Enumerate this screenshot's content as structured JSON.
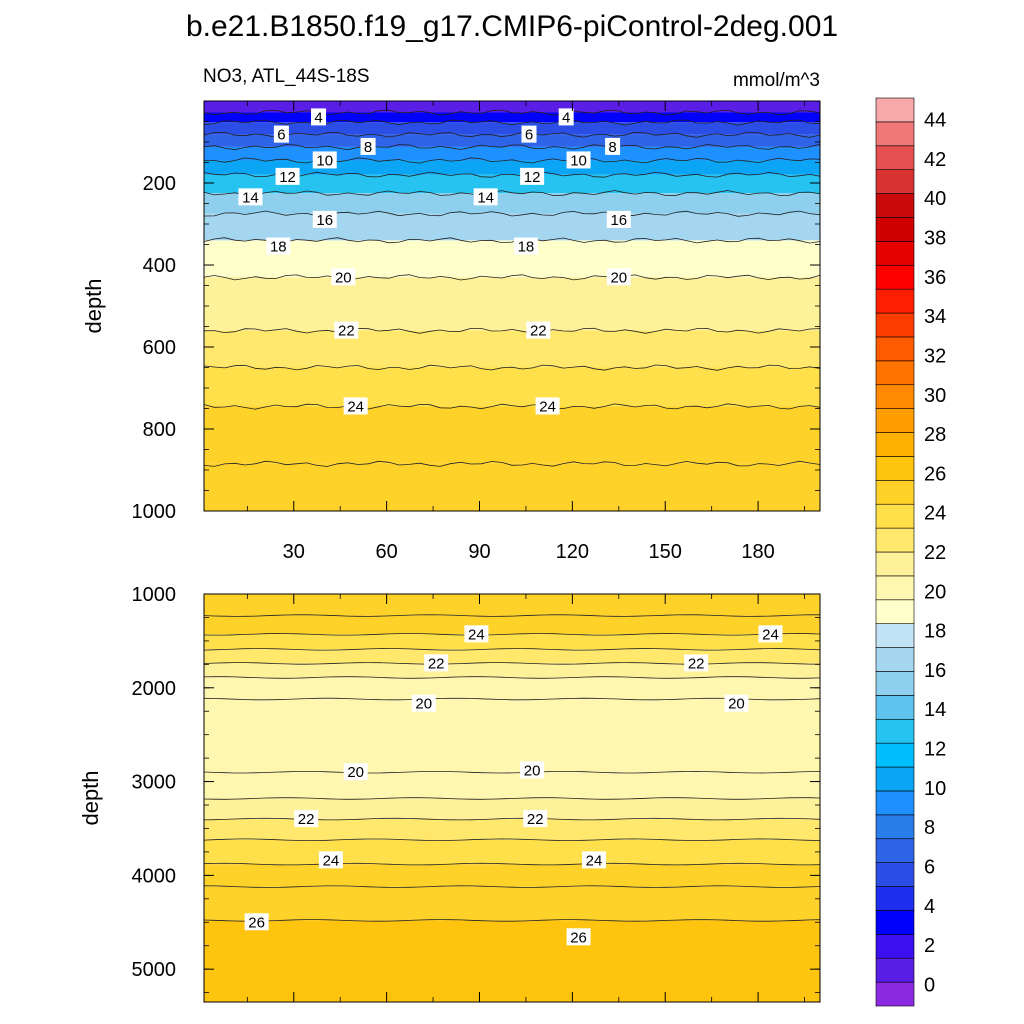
{
  "title": "b.e21.B1850.f19_g17.CMIP6-piControl-2deg.001",
  "chart_data": [
    {
      "type": "contour",
      "panel": "upper",
      "left_label": "NO3, ATL_44S-18S",
      "right_label": "mmol/m^3",
      "ylabel": "depth",
      "xlabel": "",
      "xlim": [
        1,
        200
      ],
      "ylim": [
        0,
        1000
      ],
      "y_inverted": true,
      "x_ticks": [
        30,
        60,
        90,
        120,
        150,
        180
      ],
      "y_ticks": [
        200,
        400,
        600,
        800,
        1000
      ],
      "isoline_depths": [
        {
          "value": 2,
          "depth": 28
        },
        {
          "value": 4,
          "depth": 52
        },
        {
          "value": 6,
          "depth": 82
        },
        {
          "value": 8,
          "depth": 112
        },
        {
          "value": 10,
          "depth": 145
        },
        {
          "value": 12,
          "depth": 180
        },
        {
          "value": 14,
          "depth": 225
        },
        {
          "value": 16,
          "depth": 275
        },
        {
          "value": 18,
          "depth": 340
        },
        {
          "value": 20,
          "depth": 430
        },
        {
          "value": 22,
          "depth": 560
        },
        {
          "value": 23,
          "depth": 650
        },
        {
          "value": 24,
          "depth": 745
        },
        {
          "value": 25,
          "depth": 885
        }
      ],
      "contour_labels": [
        {
          "text": "4",
          "x": 38,
          "depth": 40
        },
        {
          "text": "4",
          "x": 118,
          "depth": 40
        },
        {
          "text": "6",
          "x": 26,
          "depth": 82
        },
        {
          "text": "6",
          "x": 106,
          "depth": 82
        },
        {
          "text": "8",
          "x": 54,
          "depth": 112
        },
        {
          "text": "8",
          "x": 133,
          "depth": 112
        },
        {
          "text": "10",
          "x": 40,
          "depth": 145
        },
        {
          "text": "10",
          "x": 122,
          "depth": 145
        },
        {
          "text": "12",
          "x": 28,
          "depth": 185
        },
        {
          "text": "12",
          "x": 107,
          "depth": 185
        },
        {
          "text": "14",
          "x": 16,
          "depth": 235
        },
        {
          "text": "14",
          "x": 92,
          "depth": 235
        },
        {
          "text": "16",
          "x": 40,
          "depth": 290
        },
        {
          "text": "16",
          "x": 135,
          "depth": 290
        },
        {
          "text": "18",
          "x": 25,
          "depth": 355
        },
        {
          "text": "18",
          "x": 105,
          "depth": 355
        },
        {
          "text": "20",
          "x": 46,
          "depth": 430
        },
        {
          "text": "20",
          "x": 135,
          "depth": 430
        },
        {
          "text": "22",
          "x": 47,
          "depth": 560
        },
        {
          "text": "22",
          "x": 109,
          "depth": 560
        },
        {
          "text": "24",
          "x": 50,
          "depth": 745
        },
        {
          "text": "24",
          "x": 112,
          "depth": 745
        }
      ]
    },
    {
      "type": "contour",
      "panel": "lower",
      "ylabel": "depth",
      "xlabel": "",
      "xlim": [
        1,
        200
      ],
      "ylim": [
        1000,
        5350
      ],
      "y_inverted": true,
      "x_ticks": [
        30,
        60,
        90,
        120,
        150,
        180
      ],
      "y_ticks": [
        1000,
        2000,
        3000,
        4000,
        5000
      ],
      "isoline_depths": [
        {
          "value": 25,
          "depth": 1230
        },
        {
          "value": 24,
          "depth": 1430
        },
        {
          "value": 23,
          "depth": 1590
        },
        {
          "value": 22,
          "depth": 1740
        },
        {
          "value": 21,
          "depth": 1890
        },
        {
          "value": 20,
          "depth": 2120
        },
        {
          "value": 20,
          "depth": 2900
        },
        {
          "value": 21,
          "depth": 3180
        },
        {
          "value": 22,
          "depth": 3400
        },
        {
          "value": 23,
          "depth": 3620
        },
        {
          "value": 24,
          "depth": 3880
        },
        {
          "value": 25,
          "depth": 4120
        },
        {
          "value": 26,
          "depth": 4480
        }
      ],
      "contour_labels": [
        {
          "text": "24",
          "x": 89,
          "depth": 1430
        },
        {
          "text": "24",
          "x": 184,
          "depth": 1430
        },
        {
          "text": "22",
          "x": 76,
          "depth": 1740
        },
        {
          "text": "22",
          "x": 160,
          "depth": 1740
        },
        {
          "text": "20",
          "x": 72,
          "depth": 2170
        },
        {
          "text": "20",
          "x": 173,
          "depth": 2170
        },
        {
          "text": "20",
          "x": 50,
          "depth": 2900
        },
        {
          "text": "20",
          "x": 107,
          "depth": 2880
        },
        {
          "text": "22",
          "x": 34,
          "depth": 3400
        },
        {
          "text": "22",
          "x": 108,
          "depth": 3400
        },
        {
          "text": "24",
          "x": 42,
          "depth": 3840
        },
        {
          "text": "24",
          "x": 127,
          "depth": 3840
        },
        {
          "text": "26",
          "x": 18,
          "depth": 4500
        },
        {
          "text": "26",
          "x": 122,
          "depth": 4660
        }
      ]
    }
  ],
  "colorbar": {
    "levels": [
      0,
      2,
      4,
      6,
      8,
      10,
      12,
      14,
      16,
      18,
      20,
      22,
      24,
      26,
      28,
      30,
      32,
      34,
      36,
      38,
      40,
      42,
      44
    ],
    "colors": [
      "#8a2be2",
      "#5a1ee6",
      "#3a10f0",
      "#0000ff",
      "#1e2ef0",
      "#2b4fe6",
      "#2e64e8",
      "#2b7de9",
      "#1e90ff",
      "#0aa5f5",
      "#00bfff",
      "#26c2f0",
      "#5ec4ef",
      "#8ecfee",
      "#a5d6f0",
      "#c2e3f5",
      "#ffffcc",
      "#fff7b0",
      "#fff09a",
      "#ffe86c",
      "#ffe04a",
      "#ffd22a",
      "#ffc40d",
      "#ffb000",
      "#ff9e00",
      "#ff8a00",
      "#ff7300",
      "#ff5a00",
      "#ff3c00",
      "#ff1e00",
      "#ff0000",
      "#e60000",
      "#d00000",
      "#c80a0a",
      "#d83232",
      "#e65050",
      "#f07878",
      "#f8a8a8"
    ]
  }
}
